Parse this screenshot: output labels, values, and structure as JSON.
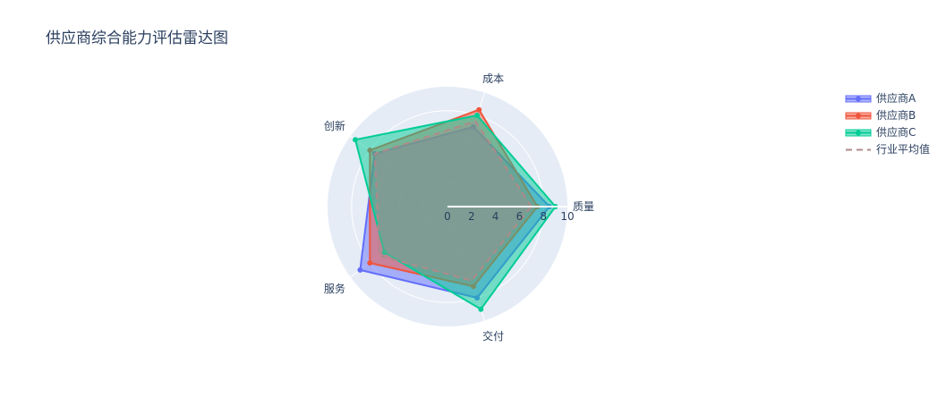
{
  "chart_data": {
    "type": "radar",
    "title": "供应商综合能力评估雷达图",
    "axes": [
      "质量",
      "成本",
      "创新",
      "服务",
      "交付"
    ],
    "radial_range": [
      0,
      10
    ],
    "radial_ticks": [
      "0",
      "2",
      "4",
      "6",
      "8",
      "10"
    ],
    "series": [
      {
        "name": "供应商A",
        "values": [
          8.5,
          7.0,
          7.5,
          9.0,
          8.0
        ],
        "color": "#636efa",
        "fill": true,
        "markers": true
      },
      {
        "name": "供应商B",
        "values": [
          7.5,
          8.5,
          8.0,
          8.0,
          7.0
        ],
        "color": "#ef553b",
        "fill": true,
        "markers": true
      },
      {
        "name": "供应商C",
        "values": [
          9.0,
          8.0,
          9.5,
          6.5,
          9.0
        ],
        "color": "#00cc96",
        "fill": true,
        "markers": true
      },
      {
        "name": "行业平均值",
        "values": [
          7.0,
          7.5,
          7.5,
          7.0,
          6.5
        ],
        "color": "#b08a8a",
        "fill": true,
        "markers": false,
        "dash": true
      }
    ],
    "legend_position": "top-right",
    "polar_background": "#e5ecf6",
    "grid": true
  }
}
